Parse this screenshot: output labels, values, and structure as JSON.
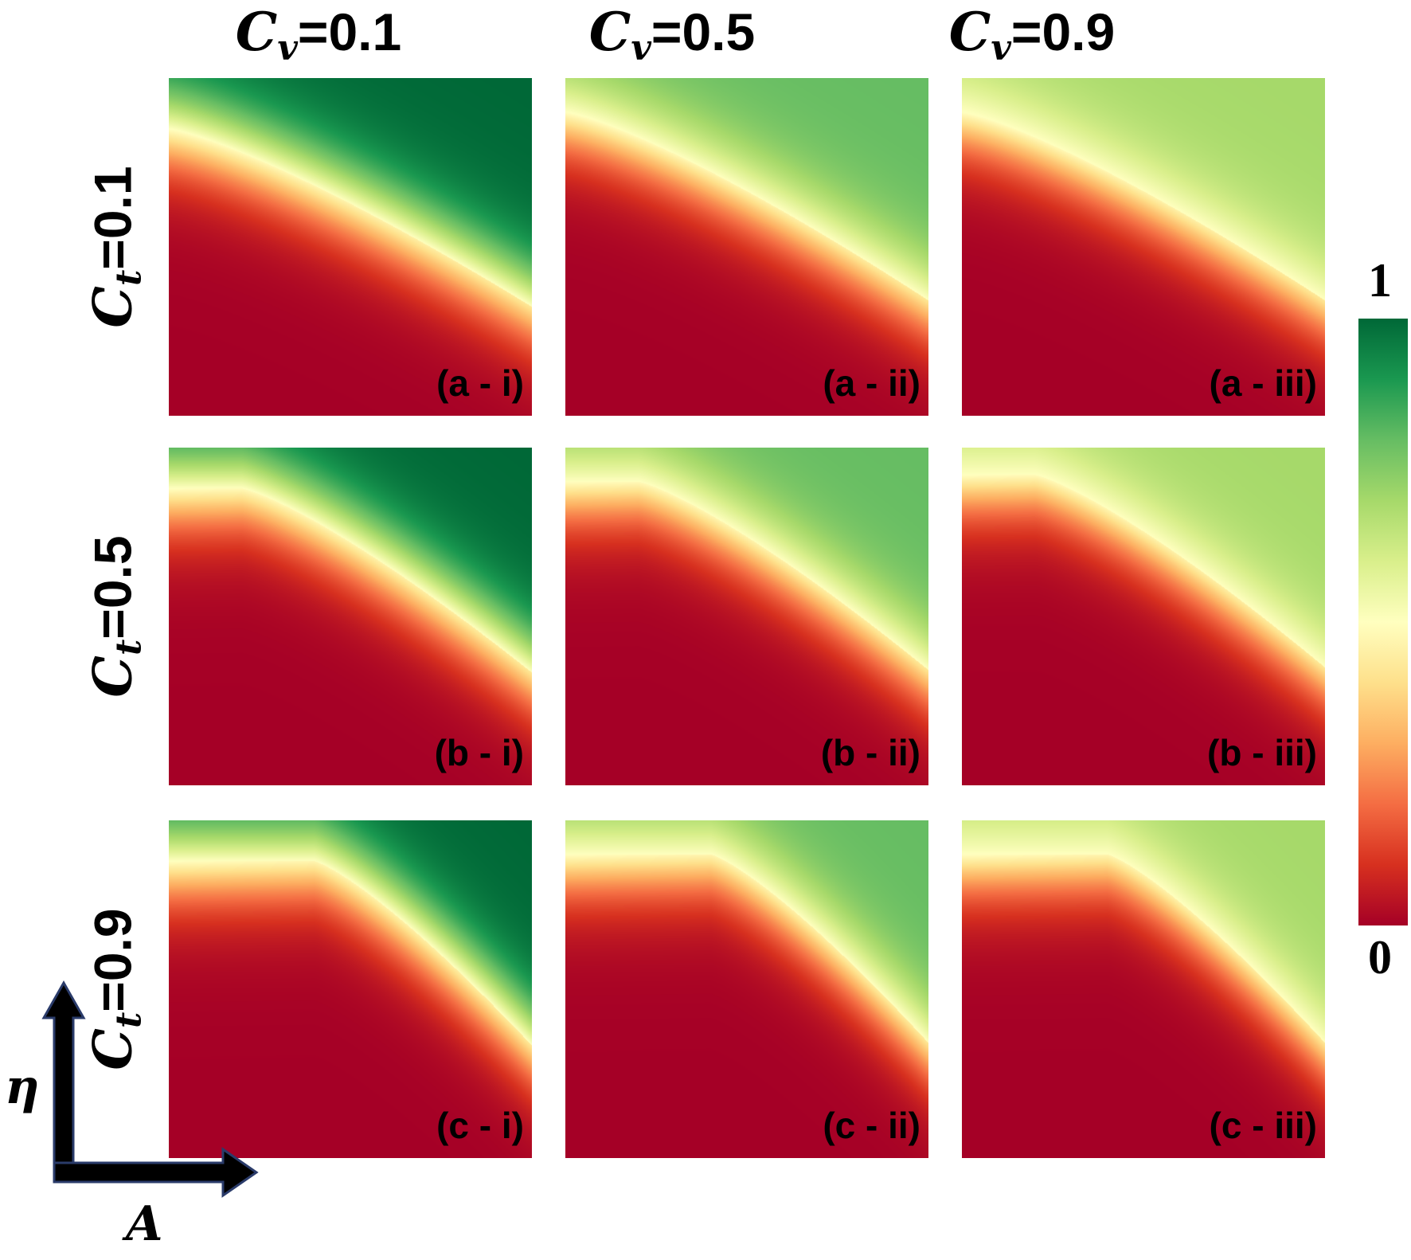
{
  "column_headers": [
    {
      "symbol": "C",
      "subscript": "v",
      "value": "=0.1"
    },
    {
      "symbol": "C",
      "subscript": "v",
      "value": "=0.5"
    },
    {
      "symbol": "C",
      "subscript": "v",
      "value": "=0.9"
    }
  ],
  "row_headers": [
    {
      "symbol": "C",
      "subscript": "t",
      "value": "=0.1"
    },
    {
      "symbol": "C",
      "subscript": "t",
      "value": "=0.5"
    },
    {
      "symbol": "C",
      "subscript": "t",
      "value": "=0.9"
    }
  ],
  "axes": {
    "x": "A",
    "y": "η"
  },
  "colorbar": {
    "max_label": "1",
    "min_label": "0",
    "colors": [
      "#a50026",
      "#d7301f",
      "#f46d43",
      "#fdae61",
      "#fee08b",
      "#ffffbf",
      "#d9ef8b",
      "#a6d96a",
      "#66bd63",
      "#1a9850",
      "#006837"
    ]
  },
  "chart_data": {
    "type": "heatmap",
    "xlabel": "A",
    "ylabel": "η",
    "colorbar_range": [
      0,
      1
    ],
    "panels": [
      {
        "label": "(a - i)",
        "Ct": 0.1,
        "Cv": 0.1,
        "boundary_y_at_left": 0.85,
        "flat_fraction": 0.0,
        "max_value": 1.0
      },
      {
        "label": "(a - ii)",
        "Ct": 0.1,
        "Cv": 0.5,
        "boundary_y_at_left": 0.9,
        "flat_fraction": 0.0,
        "max_value": 0.8
      },
      {
        "label": "(a - iii)",
        "Ct": 0.1,
        "Cv": 0.9,
        "boundary_y_at_left": 0.9,
        "flat_fraction": 0.0,
        "max_value": 0.7
      },
      {
        "label": "(b - i)",
        "Ct": 0.5,
        "Cv": 0.1,
        "boundary_y_at_left": 0.88,
        "flat_fraction": 0.2,
        "max_value": 1.0
      },
      {
        "label": "(b - ii)",
        "Ct": 0.5,
        "Cv": 0.5,
        "boundary_y_at_left": 0.9,
        "flat_fraction": 0.2,
        "max_value": 0.8
      },
      {
        "label": "(b - iii)",
        "Ct": 0.5,
        "Cv": 0.9,
        "boundary_y_at_left": 0.92,
        "flat_fraction": 0.2,
        "max_value": 0.7
      },
      {
        "label": "(c - i)",
        "Ct": 0.9,
        "Cv": 0.1,
        "boundary_y_at_left": 0.88,
        "flat_fraction": 0.4,
        "max_value": 1.0
      },
      {
        "label": "(c - ii)",
        "Ct": 0.9,
        "Cv": 0.5,
        "boundary_y_at_left": 0.9,
        "flat_fraction": 0.4,
        "max_value": 0.8
      },
      {
        "label": "(c - iii)",
        "Ct": 0.9,
        "Cv": 0.9,
        "boundary_y_at_left": 0.9,
        "flat_fraction": 0.4,
        "max_value": 0.7
      }
    ]
  }
}
